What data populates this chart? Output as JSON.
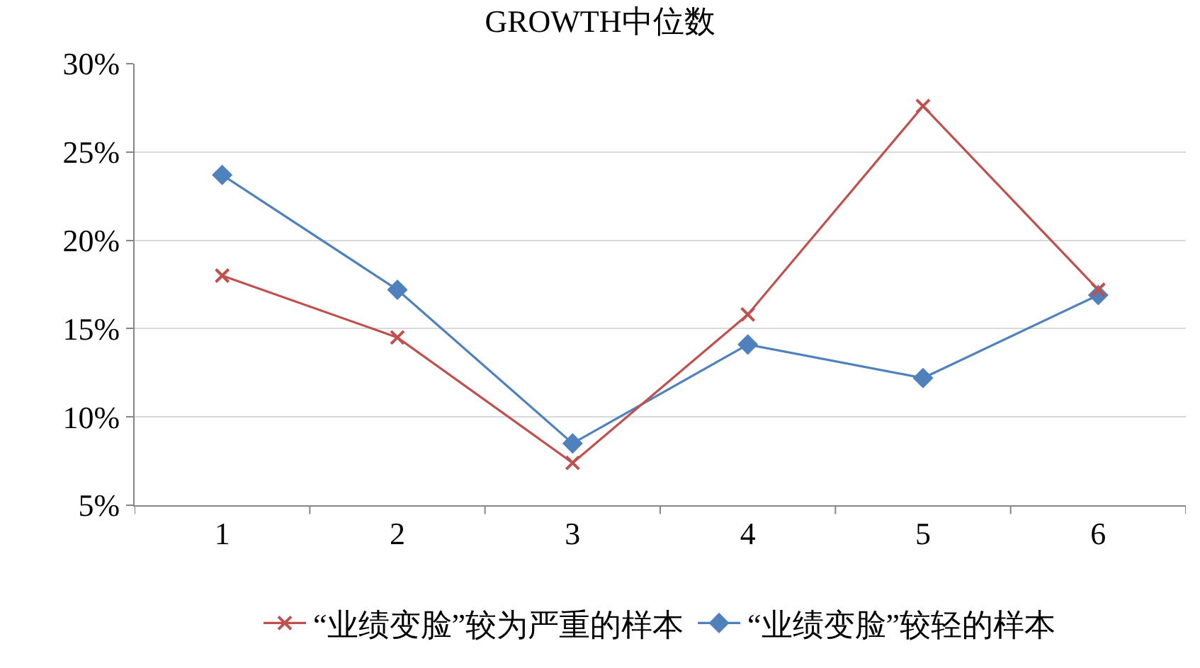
{
  "chart_data": {
    "type": "line",
    "title": "GROWTH中位数",
    "categories": [
      "1",
      "2",
      "3",
      "4",
      "5",
      "6"
    ],
    "series": [
      {
        "name": "“业绩变脸”较为严重的样本",
        "color": "#c0504d",
        "marker": "cross",
        "values": [
          18.0,
          14.5,
          7.4,
          15.8,
          27.6,
          17.2
        ]
      },
      {
        "name": "“业绩变脸”较轻的样本",
        "color": "#4f81bd",
        "marker": "diamond",
        "values": [
          23.7,
          17.2,
          8.5,
          14.1,
          12.2,
          16.9
        ]
      }
    ],
    "ylim": [
      5,
      30
    ],
    "yticks": [
      {
        "value": 5,
        "label": "5%"
      },
      {
        "value": 10,
        "label": "10%"
      },
      {
        "value": 15,
        "label": "15%"
      },
      {
        "value": 20,
        "label": "20%"
      },
      {
        "value": 25,
        "label": "25%"
      },
      {
        "value": 30,
        "label": "30%"
      }
    ],
    "grid": "y",
    "legend": "bottom",
    "line_style": "solid"
  }
}
